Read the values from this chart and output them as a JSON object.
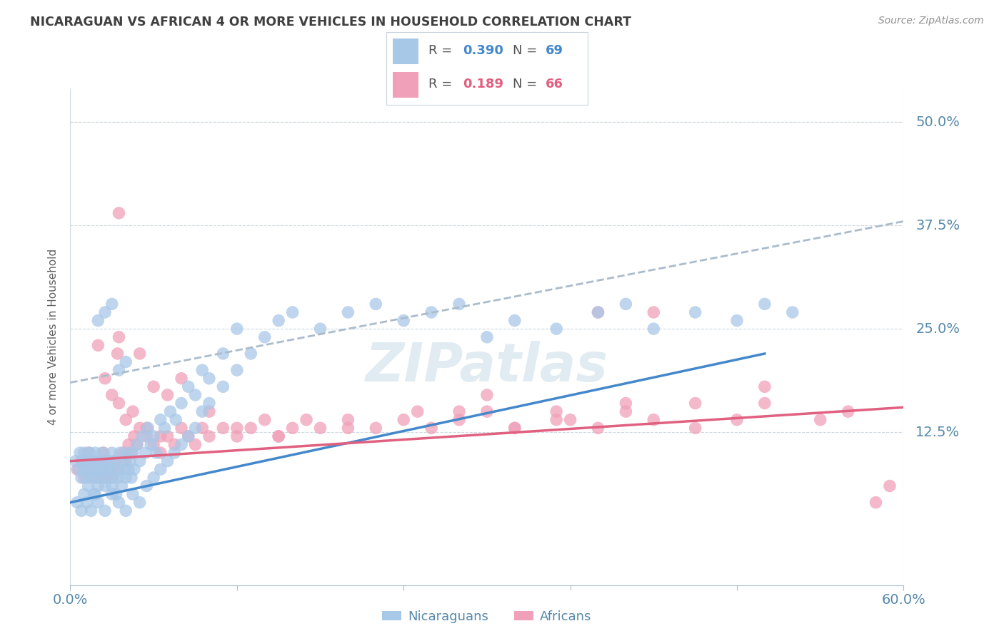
{
  "title": "NICARAGUAN VS AFRICAN 4 OR MORE VEHICLES IN HOUSEHOLD CORRELATION CHART",
  "source": "Source: ZipAtlas.com",
  "ylabel": "4 or more Vehicles in Household",
  "ytick_values": [
    0.125,
    0.25,
    0.375,
    0.5
  ],
  "ytick_labels": [
    "12.5%",
    "25.0%",
    "37.5%",
    "50.0%"
  ],
  "xlim": [
    0.0,
    0.6
  ],
  "ylim": [
    -0.06,
    0.54
  ],
  "legend_r1": "0.390",
  "legend_n1": "69",
  "legend_r2": "0.189",
  "legend_n2": "66",
  "color_nicaraguan": "#a8c8e8",
  "color_african": "#f0a0b8",
  "color_line_nicaraguan": "#4488cc",
  "color_line_african": "#e06080",
  "color_dashed": "#aabccc",
  "title_color": "#404040",
  "axis_label_color": "#5588aa",
  "watermark_color": "#c8dce8",
  "nic_line_x": [
    0.0,
    0.5
  ],
  "nic_line_y": [
    0.04,
    0.22
  ],
  "afr_line_x": [
    0.0,
    0.6
  ],
  "afr_line_y": [
    0.09,
    0.155
  ],
  "dash_line_x": [
    0.0,
    0.6
  ],
  "dash_line_y": [
    0.185,
    0.38
  ],
  "nicaraguan_x": [
    0.004,
    0.006,
    0.007,
    0.008,
    0.009,
    0.01,
    0.01,
    0.011,
    0.012,
    0.012,
    0.013,
    0.014,
    0.014,
    0.015,
    0.015,
    0.016,
    0.017,
    0.018,
    0.018,
    0.019,
    0.02,
    0.02,
    0.021,
    0.022,
    0.023,
    0.024,
    0.025,
    0.025,
    0.026,
    0.027,
    0.028,
    0.029,
    0.03,
    0.03,
    0.031,
    0.032,
    0.033,
    0.034,
    0.035,
    0.036,
    0.037,
    0.038,
    0.039,
    0.04,
    0.041,
    0.042,
    0.043,
    0.044,
    0.045,
    0.046,
    0.048,
    0.05,
    0.052,
    0.054,
    0.056,
    0.058,
    0.06,
    0.062,
    0.065,
    0.068,
    0.072,
    0.076,
    0.08,
    0.085,
    0.09,
    0.095,
    0.1,
    0.11,
    0.12
  ],
  "nicaraguan_y": [
    0.09,
    0.08,
    0.1,
    0.07,
    0.09,
    0.08,
    0.1,
    0.09,
    0.07,
    0.08,
    0.06,
    0.09,
    0.1,
    0.07,
    0.08,
    0.09,
    0.05,
    0.08,
    0.1,
    0.07,
    0.06,
    0.09,
    0.08,
    0.07,
    0.1,
    0.08,
    0.06,
    0.09,
    0.08,
    0.07,
    0.09,
    0.08,
    0.06,
    0.1,
    0.07,
    0.09,
    0.05,
    0.08,
    0.07,
    0.1,
    0.06,
    0.09,
    0.08,
    0.07,
    0.1,
    0.08,
    0.09,
    0.07,
    0.1,
    0.08,
    0.11,
    0.09,
    0.12,
    0.1,
    0.13,
    0.11,
    0.12,
    0.1,
    0.14,
    0.13,
    0.15,
    0.14,
    0.16,
    0.18,
    0.17,
    0.2,
    0.19,
    0.22,
    0.25
  ],
  "nicaraguan_x2": [
    0.005,
    0.008,
    0.01,
    0.012,
    0.015,
    0.018,
    0.02,
    0.025,
    0.03,
    0.035,
    0.04,
    0.045,
    0.05,
    0.02,
    0.025,
    0.03,
    0.035,
    0.04,
    0.055,
    0.06,
    0.065,
    0.07,
    0.075,
    0.08,
    0.085,
    0.09,
    0.095,
    0.1,
    0.11,
    0.12,
    0.13,
    0.14,
    0.15,
    0.16,
    0.18,
    0.2,
    0.22,
    0.24,
    0.26,
    0.28,
    0.3,
    0.32,
    0.35,
    0.38,
    0.4,
    0.42,
    0.45,
    0.48,
    0.5,
    0.52
  ],
  "nicaraguan_y2": [
    0.04,
    0.03,
    0.05,
    0.04,
    0.03,
    0.05,
    0.04,
    0.03,
    0.05,
    0.04,
    0.03,
    0.05,
    0.04,
    0.26,
    0.27,
    0.28,
    0.2,
    0.21,
    0.06,
    0.07,
    0.08,
    0.09,
    0.1,
    0.11,
    0.12,
    0.13,
    0.15,
    0.16,
    0.18,
    0.2,
    0.22,
    0.24,
    0.26,
    0.27,
    0.25,
    0.27,
    0.28,
    0.26,
    0.27,
    0.28,
    0.24,
    0.26,
    0.25,
    0.27,
    0.28,
    0.25,
    0.27,
    0.26,
    0.28,
    0.27
  ],
  "african_x": [
    0.005,
    0.008,
    0.01,
    0.012,
    0.013,
    0.015,
    0.016,
    0.018,
    0.019,
    0.02,
    0.021,
    0.022,
    0.023,
    0.024,
    0.025,
    0.026,
    0.028,
    0.03,
    0.032,
    0.034,
    0.035,
    0.038,
    0.04,
    0.042,
    0.044,
    0.046,
    0.048,
    0.05,
    0.055,
    0.06,
    0.065,
    0.07,
    0.075,
    0.08,
    0.085,
    0.09,
    0.095,
    0.1,
    0.11,
    0.12,
    0.13,
    0.14,
    0.15,
    0.16,
    0.17,
    0.18,
    0.2,
    0.22,
    0.24,
    0.26,
    0.28,
    0.3,
    0.32,
    0.35,
    0.38,
    0.4,
    0.42,
    0.45,
    0.48,
    0.5,
    0.54,
    0.56,
    0.58,
    0.59,
    0.034,
    0.035
  ],
  "african_y": [
    0.08,
    0.09,
    0.07,
    0.08,
    0.1,
    0.09,
    0.08,
    0.07,
    0.09,
    0.08,
    0.07,
    0.09,
    0.08,
    0.1,
    0.07,
    0.09,
    0.08,
    0.07,
    0.09,
    0.08,
    0.39,
    0.1,
    0.09,
    0.11,
    0.1,
    0.12,
    0.11,
    0.13,
    0.12,
    0.11,
    0.1,
    0.12,
    0.11,
    0.13,
    0.12,
    0.11,
    0.13,
    0.12,
    0.13,
    0.12,
    0.13,
    0.14,
    0.12,
    0.13,
    0.14,
    0.13,
    0.14,
    0.13,
    0.14,
    0.13,
    0.14,
    0.15,
    0.13,
    0.14,
    0.13,
    0.15,
    0.14,
    0.16,
    0.14,
    0.16,
    0.14,
    0.15,
    0.04,
    0.06,
    0.22,
    0.24
  ],
  "african_x2": [
    0.02,
    0.025,
    0.03,
    0.035,
    0.04,
    0.045,
    0.05,
    0.055,
    0.06,
    0.065,
    0.07,
    0.08,
    0.1,
    0.12,
    0.15,
    0.2,
    0.25,
    0.3,
    0.35,
    0.4,
    0.45,
    0.5,
    0.38,
    0.42,
    0.28,
    0.32,
    0.36
  ],
  "african_y2": [
    0.23,
    0.19,
    0.17,
    0.16,
    0.14,
    0.15,
    0.22,
    0.13,
    0.18,
    0.12,
    0.17,
    0.19,
    0.15,
    0.13,
    0.12,
    0.13,
    0.15,
    0.17,
    0.15,
    0.16,
    0.13,
    0.18,
    0.27,
    0.27,
    0.15,
    0.13,
    0.14
  ]
}
